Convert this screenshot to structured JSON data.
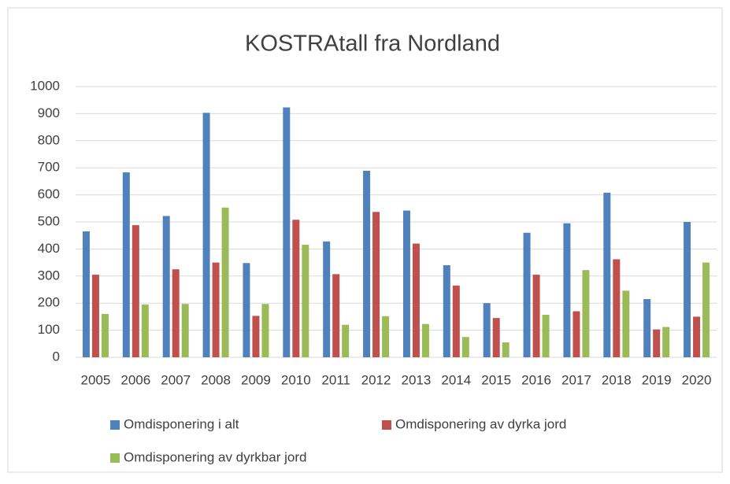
{
  "chart_data": {
    "type": "bar",
    "title": "KOSTRAtall fra Nordland",
    "categories": [
      "2005",
      "2006",
      "2007",
      "2008",
      "2009",
      "2010",
      "2011",
      "2012",
      "2013",
      "2014",
      "2015",
      "2016",
      "2017",
      "2018",
      "2019",
      "2020"
    ],
    "series": [
      {
        "name": "Omdisponering i alt",
        "color": "#4f81bd",
        "values": [
          465,
          683,
          522,
          903,
          348,
          923,
          428,
          689,
          542,
          340,
          200,
          460,
          495,
          608,
          215,
          500
        ]
      },
      {
        "name": "Omdisponering av dyrka jord",
        "color": "#c0504d",
        "values": [
          305,
          488,
          325,
          350,
          153,
          508,
          307,
          537,
          420,
          265,
          145,
          305,
          170,
          362,
          103,
          150
        ]
      },
      {
        "name": "Omdisponering av dyrkbar jord",
        "color": "#9bbb59",
        "values": [
          160,
          195,
          197,
          553,
          197,
          416,
          120,
          152,
          123,
          75,
          55,
          157,
          322,
          246,
          112,
          350
        ]
      }
    ],
    "ylim": [
      0,
      1000
    ],
    "yticks": [
      0,
      100,
      200,
      300,
      400,
      500,
      600,
      700,
      800,
      900,
      1000
    ],
    "grid": true,
    "legend": "bottom"
  }
}
